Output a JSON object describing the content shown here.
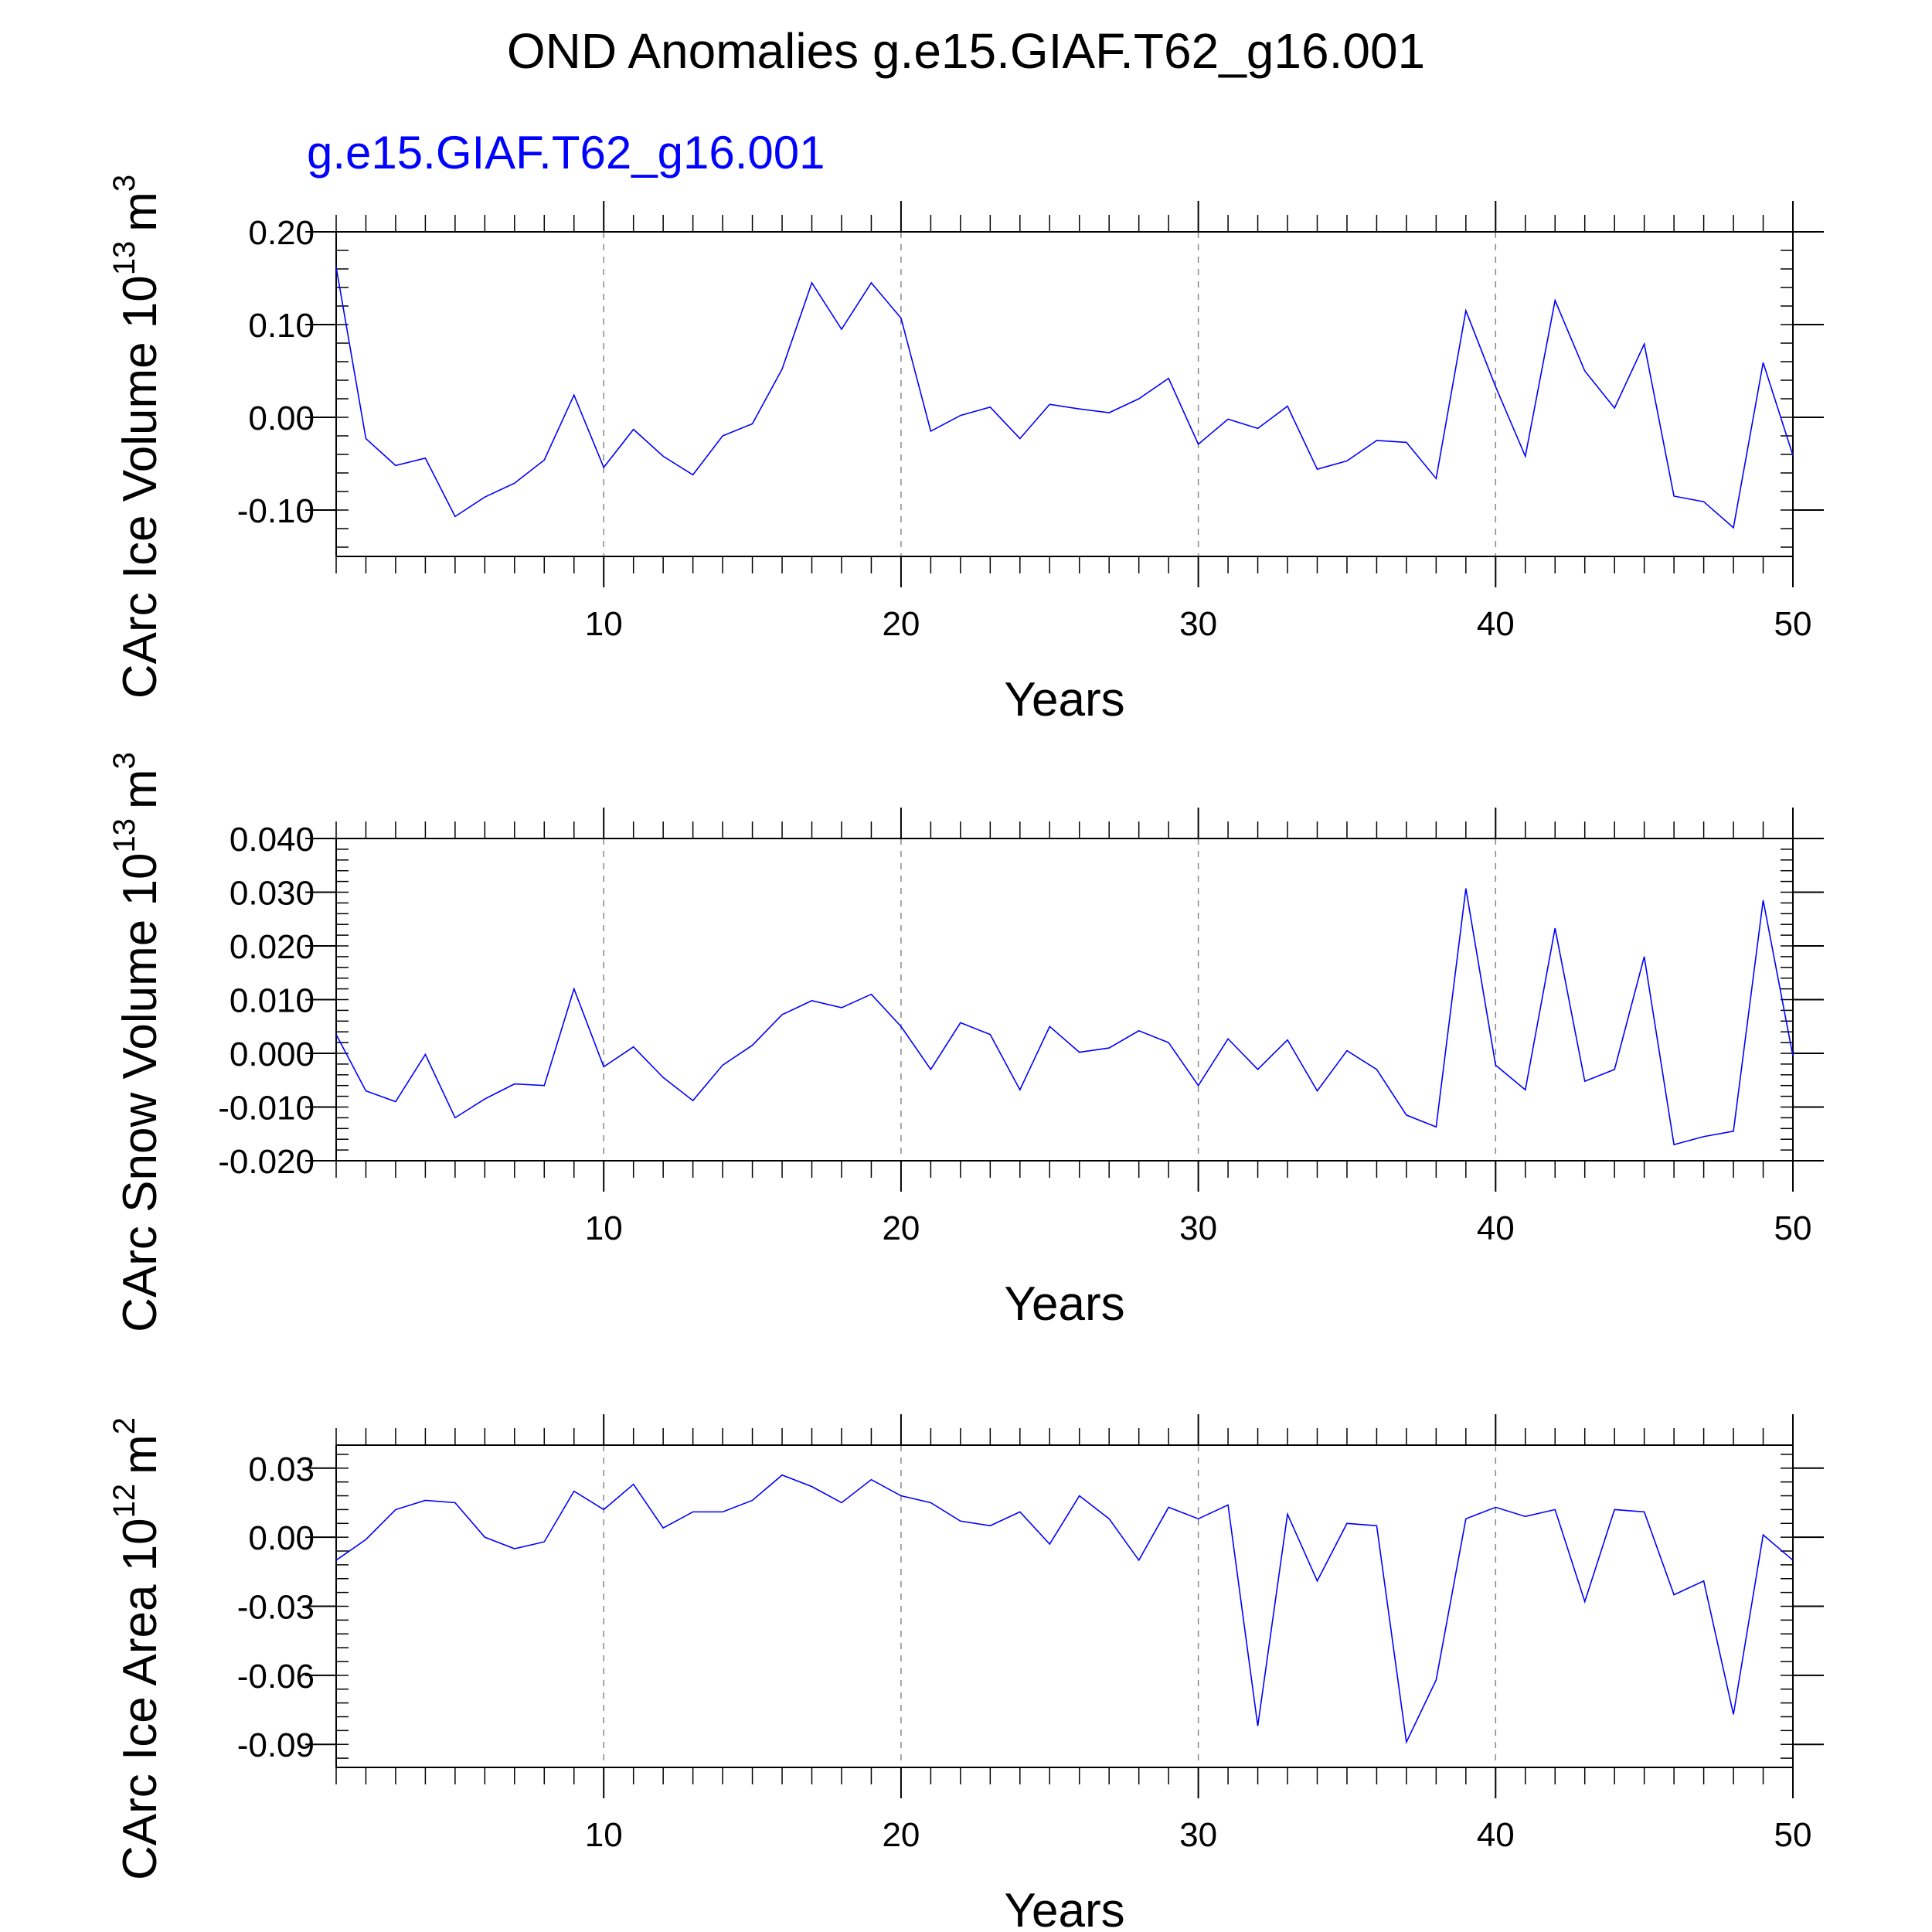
{
  "title": "OND Anomalies g.e15.GIAF.T62_g16.001",
  "series_label": "g.e15.GIAF.T62_g16.001",
  "series_color": "#0000ff",
  "chart_data": [
    {
      "type": "line",
      "ylabel": "CArc Ice Volume 10",
      "ylabel_exp": "13",
      "ylabel_unit": "m",
      "ylabel_unit_exp": "3",
      "xlabel": "Years",
      "xlim": [
        1,
        50
      ],
      "ylim": [
        -0.15,
        0.2
      ],
      "yticks": [
        -0.1,
        0.0,
        0.1,
        0.2
      ],
      "ytick_labels": [
        "-0.10",
        "0.00",
        "0.10",
        "0.20"
      ],
      "xticks": [
        10,
        20,
        30,
        40,
        50
      ],
      "xtick_labels": [
        "10",
        "20",
        "30",
        "40",
        "50"
      ],
      "grid": "dashed vertical lines at major x ticks",
      "series": [
        {
          "name": "g.e15.GIAF.T62_g16.001",
          "color": "#0000ff",
          "values": [
            0.162,
            -0.023,
            -0.052,
            -0.044,
            -0.107,
            -0.086,
            -0.071,
            -0.046,
            0.024,
            -0.054,
            -0.013,
            -0.042,
            -0.062,
            -0.02,
            -0.007,
            0.052,
            0.145,
            0.095,
            0.145,
            0.107,
            -0.015,
            0.002,
            0.011,
            -0.023,
            0.014,
            0.009,
            0.005,
            0.02,
            0.042,
            -0.029,
            -0.002,
            -0.012,
            0.012,
            -0.056,
            -0.047,
            -0.025,
            -0.027,
            -0.066,
            0.115,
            0.033,
            -0.042,
            0.126,
            0.05,
            0.01,
            0.079,
            -0.085,
            -0.091,
            -0.119,
            0.059,
            -0.041
          ]
        }
      ]
    },
    {
      "type": "line",
      "ylabel": "CArc Snow Volume 10",
      "ylabel_exp": "13",
      "ylabel_unit": "m",
      "ylabel_unit_exp": "3",
      "xlabel": "Years",
      "xlim": [
        1,
        50
      ],
      "ylim": [
        -0.02,
        0.04
      ],
      "yticks": [
        -0.02,
        -0.01,
        0.0,
        0.01,
        0.02,
        0.03,
        0.04
      ],
      "ytick_labels": [
        "-0.020",
        "-0.010",
        "0.000",
        "0.010",
        "0.020",
        "0.030",
        "0.040"
      ],
      "xticks": [
        10,
        20,
        30,
        40,
        50
      ],
      "xtick_labels": [
        "10",
        "20",
        "30",
        "40",
        "50"
      ],
      "grid": "dashed vertical lines at major x ticks",
      "series": [
        {
          "name": "g.e15.GIAF.T62_g16.001",
          "color": "#0000ff",
          "values": [
            0.0035,
            -0.007,
            -0.009,
            -0.0002,
            -0.012,
            -0.0085,
            -0.0057,
            -0.006,
            0.012,
            -0.0025,
            0.0012,
            -0.0045,
            -0.0088,
            -0.0022,
            0.0015,
            0.0072,
            0.0098,
            0.0085,
            0.011,
            0.005,
            -0.003,
            0.0057,
            0.0035,
            -0.0068,
            0.005,
            0.0002,
            0.001,
            0.0042,
            0.002,
            -0.006,
            0.0027,
            -0.003,
            0.0025,
            -0.007,
            0.0005,
            -0.003,
            -0.0115,
            -0.0137,
            0.0307,
            -0.0022,
            -0.0068,
            0.0233,
            -0.0052,
            -0.003,
            0.018,
            -0.017,
            -0.0155,
            -0.0145,
            0.0285,
            -0.0005
          ]
        }
      ]
    },
    {
      "type": "line",
      "ylabel": "CArc Ice Area 10",
      "ylabel_exp": "12",
      "ylabel_unit": "m",
      "ylabel_unit_exp": "2",
      "xlabel": "Years",
      "xlim": [
        1,
        50
      ],
      "ylim": [
        -0.1,
        0.04
      ],
      "yticks": [
        -0.09,
        -0.06,
        -0.03,
        0.0,
        0.03
      ],
      "ytick_labels": [
        "-0.09",
        "-0.06",
        "-0.03",
        "0.00",
        "0.03"
      ],
      "xticks": [
        10,
        20,
        30,
        40,
        50
      ],
      "xtick_labels": [
        "10",
        "20",
        "30",
        "40",
        "50"
      ],
      "grid": "dashed vertical lines at major x ticks",
      "series": [
        {
          "name": "g.e15.GIAF.T62_g16.001",
          "color": "#0000ff",
          "values": [
            -0.01,
            -0.001,
            0.012,
            0.016,
            0.015,
            0.0,
            -0.005,
            -0.002,
            0.02,
            0.012,
            0.023,
            0.004,
            0.011,
            0.011,
            0.016,
            0.027,
            0.022,
            0.015,
            0.025,
            0.018,
            0.015,
            0.007,
            0.005,
            0.011,
            -0.003,
            0.018,
            0.008,
            -0.01,
            0.013,
            0.008,
            0.014,
            -0.082,
            0.01,
            -0.019,
            0.006,
            0.005,
            -0.089,
            -0.062,
            0.008,
            0.013,
            0.009,
            0.012,
            -0.028,
            0.012,
            0.011,
            -0.025,
            -0.019,
            -0.077,
            0.001,
            -0.01
          ]
        }
      ]
    }
  ]
}
